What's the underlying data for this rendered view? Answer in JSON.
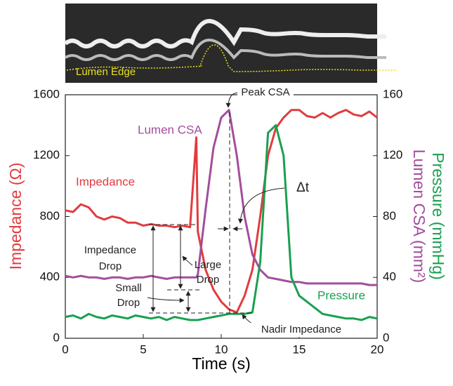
{
  "chart_data": {
    "type": "line",
    "x_label": "Time (s)",
    "y_label": "Impedance (Ω)",
    "y2_labels": [
      "Pressure (mmHg)",
      "Lumen CSA (mm²)"
    ],
    "x": [
      0,
      0.5,
      1,
      1.5,
      2,
      2.5,
      3,
      3.5,
      4,
      4.5,
      5,
      5.5,
      6,
      6.5,
      7,
      7.5,
      8,
      8.4,
      8.5,
      9,
      9.5,
      10,
      10.5,
      11,
      11.5,
      12,
      12.5,
      13,
      13.5,
      14,
      14.5,
      15,
      15.5,
      16,
      16.5,
      17,
      17.5,
      18,
      18.5,
      19,
      19.5,
      20
    ],
    "series": [
      {
        "name": "Impedance",
        "color": "#e23b3f",
        "axis": "y",
        "values": [
          840,
          830,
          880,
          860,
          800,
          780,
          800,
          790,
          760,
          760,
          740,
          750,
          740,
          740,
          730,
          740,
          730,
          1320,
          700,
          450,
          320,
          240,
          190,
          170,
          280,
          450,
          800,
          1200,
          1380,
          1450,
          1500,
          1500,
          1460,
          1450,
          1480,
          1450,
          1480,
          1500,
          1470,
          1460,
          1490,
          1450
        ]
      },
      {
        "name": "Lumen CSA",
        "color": "#a24e9c",
        "axis": "y2",
        "values": [
          41,
          40,
          41,
          40,
          40,
          39,
          40,
          40,
          39,
          40,
          40,
          41,
          40,
          39,
          40,
          40,
          40,
          40,
          42,
          85,
          125,
          145,
          150,
          120,
          80,
          55,
          45,
          40,
          39,
          38,
          37,
          37,
          36,
          36,
          36,
          36,
          36,
          36,
          36,
          36,
          35,
          35
        ]
      },
      {
        "name": "Pressure",
        "color": "#19a050",
        "axis": "y2",
        "values": [
          14,
          15,
          13,
          16,
          14,
          13,
          15,
          14,
          13,
          15,
          14,
          13,
          14,
          12,
          14,
          13,
          12,
          12,
          12,
          13,
          14,
          15,
          16,
          16,
          16,
          17,
          50,
          135,
          140,
          120,
          40,
          28,
          24,
          20,
          16,
          15,
          14,
          13,
          13,
          12,
          14,
          13
        ]
      }
    ],
    "xlim": [
      0,
      20
    ],
    "xticks": [
      0,
      5,
      10,
      15,
      20
    ],
    "ylim": [
      0,
      1600
    ],
    "yticks": [
      0,
      400,
      800,
      1200,
      1600
    ],
    "y2lim": [
      0,
      160
    ],
    "y2ticks": [
      0,
      40,
      80,
      120,
      160
    ],
    "annotations": [
      "Lumen Edge",
      "Peak CSA",
      "Δt",
      "Impedance",
      "Drop",
      "Large",
      "Drop",
      "Small",
      "Drop",
      "Nadir Impedance"
    ]
  }
}
